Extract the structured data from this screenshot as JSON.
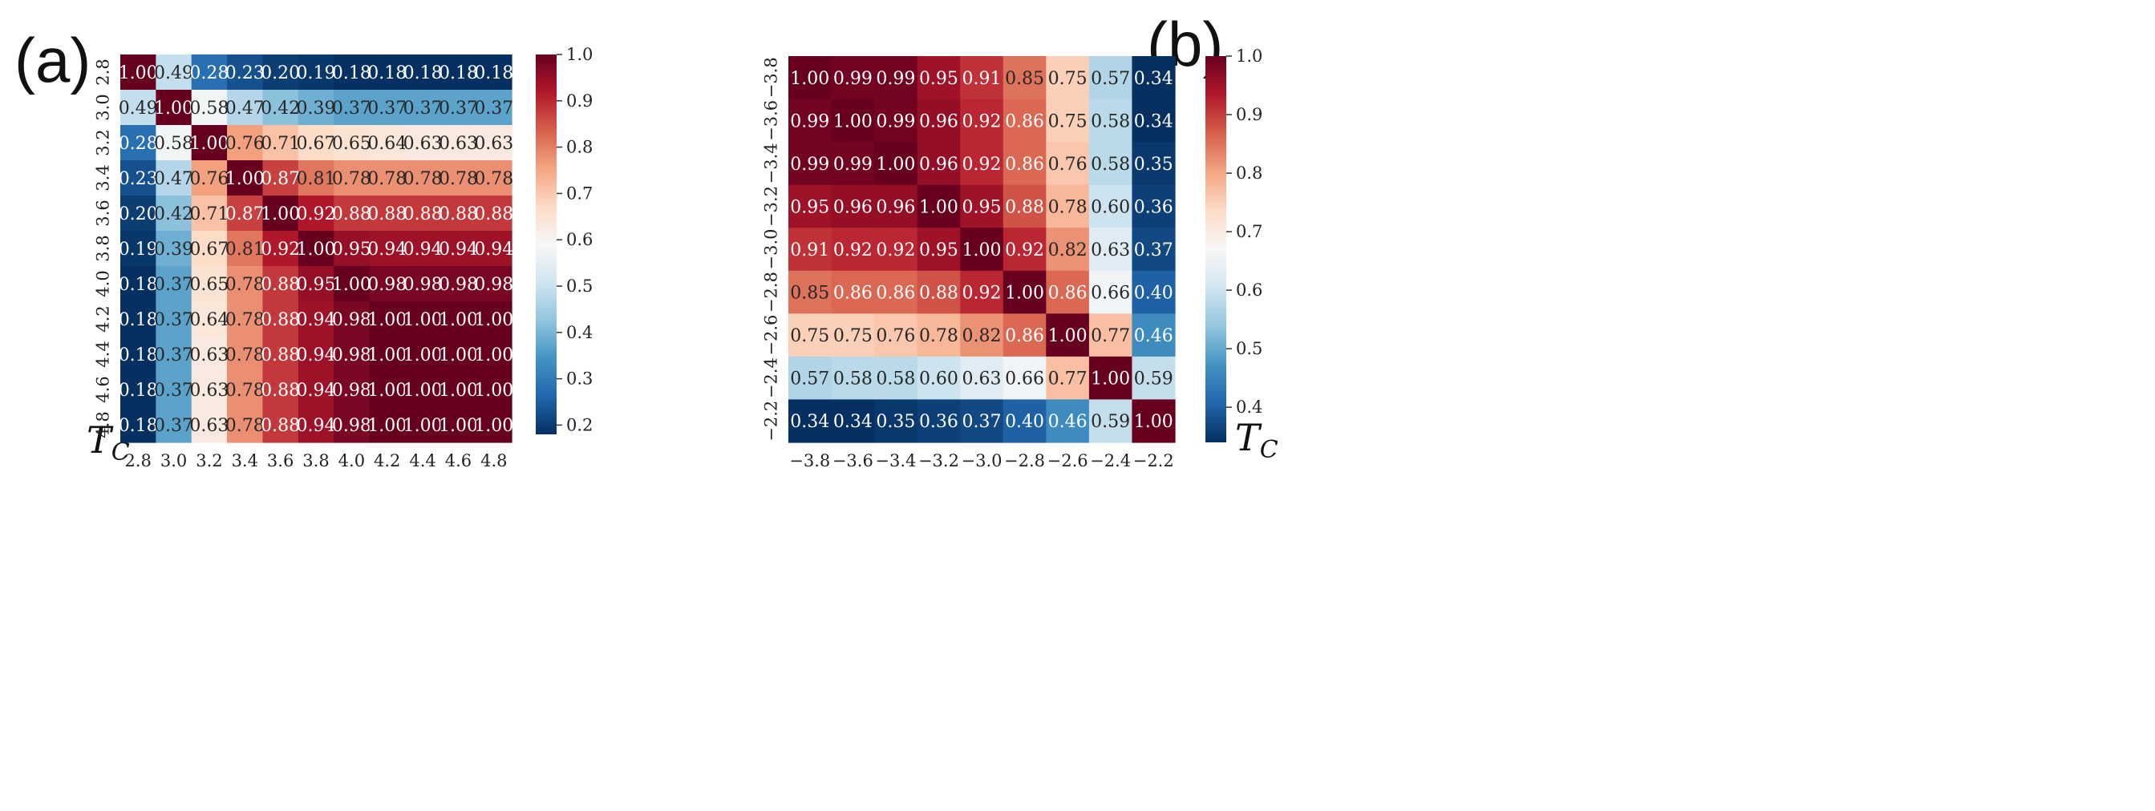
{
  "panels": [
    {
      "label": "(a)",
      "ylabel_main": "T",
      "ylabel_sub": "C",
      "chart_data": {
        "type": "heatmap",
        "x_categories": [
          "2.8",
          "3.0",
          "3.2",
          "3.4",
          "3.6",
          "3.8",
          "4.0",
          "4.2",
          "4.4",
          "4.6",
          "4.8"
        ],
        "y_categories": [
          "2.8",
          "3.0",
          "3.2",
          "3.4",
          "3.6",
          "3.8",
          "4.0",
          "4.2",
          "4.4",
          "4.6",
          "4.8"
        ],
        "ylabel": "T_C",
        "colormap": "RdBu_r",
        "vmin": 0.18,
        "vmax": 1.0,
        "colorbar_ticks": [
          "1.0",
          "0.9",
          "0.8",
          "0.7",
          "0.6",
          "0.5",
          "0.4",
          "0.3",
          "0.2"
        ],
        "values": [
          [
            1.0,
            0.49,
            0.28,
            0.23,
            0.2,
            0.19,
            0.18,
            0.18,
            0.18,
            0.18,
            0.18
          ],
          [
            0.49,
            1.0,
            0.58,
            0.47,
            0.42,
            0.39,
            0.37,
            0.37,
            0.37,
            0.37,
            0.37
          ],
          [
            0.28,
            0.58,
            1.0,
            0.76,
            0.71,
            0.67,
            0.65,
            0.64,
            0.63,
            0.63,
            0.63
          ],
          [
            0.23,
            0.47,
            0.76,
            1.0,
            0.87,
            0.81,
            0.78,
            0.78,
            0.78,
            0.78,
            0.78
          ],
          [
            0.2,
            0.42,
            0.71,
            0.87,
            1.0,
            0.92,
            0.88,
            0.88,
            0.88,
            0.88,
            0.88
          ],
          [
            0.19,
            0.39,
            0.67,
            0.81,
            0.92,
            1.0,
            0.95,
            0.94,
            0.94,
            0.94,
            0.94
          ],
          [
            0.18,
            0.37,
            0.65,
            0.78,
            0.88,
            0.95,
            1.0,
            0.98,
            0.98,
            0.98,
            0.98
          ],
          [
            0.18,
            0.37,
            0.64,
            0.78,
            0.88,
            0.94,
            0.98,
            1.0,
            1.0,
            1.0,
            1.0
          ],
          [
            0.18,
            0.37,
            0.63,
            0.78,
            0.88,
            0.94,
            0.98,
            1.0,
            1.0,
            1.0,
            1.0
          ],
          [
            0.18,
            0.37,
            0.63,
            0.78,
            0.88,
            0.94,
            0.98,
            1.0,
            1.0,
            1.0,
            1.0
          ],
          [
            0.18,
            0.37,
            0.63,
            0.78,
            0.88,
            0.94,
            0.98,
            1.0,
            1.0,
            1.0,
            1.0
          ]
        ]
      }
    },
    {
      "label": "(b)",
      "ylabel_main": "T",
      "ylabel_sub": "C",
      "chart_data": {
        "type": "heatmap",
        "x_categories": [
          "−3.8",
          "−3.6",
          "−3.4",
          "−3.2",
          "−3.0",
          "−2.8",
          "−2.6",
          "−2.4",
          "−2.2"
        ],
        "y_categories": [
          "−3.8",
          "−3.6",
          "−3.4",
          "−3.2",
          "−3.0",
          "−2.8",
          "−2.6",
          "−2.4",
          "−2.2"
        ],
        "ylabel": "T_C",
        "colormap": "RdBu_r",
        "vmin": 0.34,
        "vmax": 1.0,
        "colorbar_ticks": [
          "1.0",
          "0.9",
          "0.8",
          "0.7",
          "0.6",
          "0.5",
          "0.4"
        ],
        "values": [
          [
            1.0,
            0.99,
            0.99,
            0.95,
            0.91,
            0.85,
            0.75,
            0.57,
            0.34
          ],
          [
            0.99,
            1.0,
            0.99,
            0.96,
            0.92,
            0.86,
            0.75,
            0.58,
            0.34
          ],
          [
            0.99,
            0.99,
            1.0,
            0.96,
            0.92,
            0.86,
            0.76,
            0.58,
            0.35
          ],
          [
            0.95,
            0.96,
            0.96,
            1.0,
            0.95,
            0.88,
            0.78,
            0.6,
            0.36
          ],
          [
            0.91,
            0.92,
            0.92,
            0.95,
            1.0,
            0.92,
            0.82,
            0.63,
            0.37
          ],
          [
            0.85,
            0.86,
            0.86,
            0.88,
            0.92,
            1.0,
            0.86,
            0.66,
            0.4
          ],
          [
            0.75,
            0.75,
            0.76,
            0.78,
            0.82,
            0.86,
            1.0,
            0.77,
            0.46
          ],
          [
            0.57,
            0.58,
            0.58,
            0.6,
            0.63,
            0.66,
            0.77,
            1.0,
            0.59
          ],
          [
            0.34,
            0.34,
            0.35,
            0.36,
            0.37,
            0.4,
            0.46,
            0.59,
            1.0
          ]
        ]
      }
    }
  ]
}
